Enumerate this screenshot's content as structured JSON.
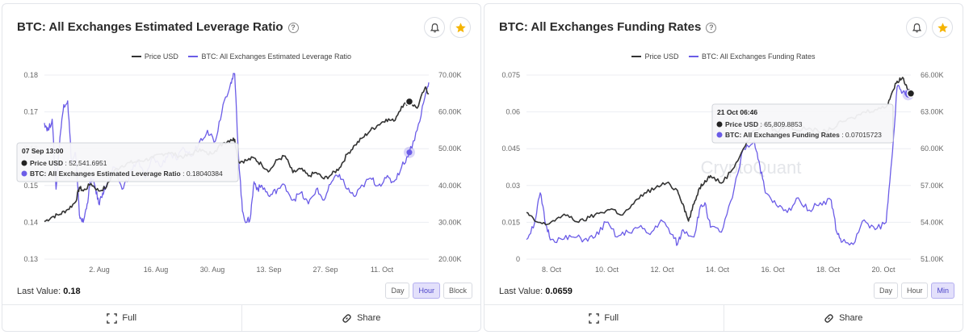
{
  "panels": [
    {
      "title": "BTC: All Exchanges Estimated Leverage Ratio",
      "legend": [
        "Price USD",
        "BTC: All Exchanges Estimated Leverage Ratio"
      ],
      "last_value_label": "Last Value:",
      "last_value": "0.18",
      "range_buttons": [
        "Day",
        "Hour",
        "Block"
      ],
      "active_range": "Hour",
      "footer": {
        "full": "Full",
        "share": "Share"
      },
      "tooltip": {
        "date": "07 Sep 13:00",
        "price_label": "Price USD",
        "price_value": "52,541.6951",
        "metric_label": "BTC: All Exchanges Estimated Leverage Ratio",
        "metric_value": "0.18040384"
      },
      "watermark": ""
    },
    {
      "title": "BTC: All Exchanges Funding Rates",
      "legend": [
        "Price USD",
        "BTC: All Exchanges Funding Rates"
      ],
      "last_value_label": "Last Value:",
      "last_value": "0.0659",
      "range_buttons": [
        "Day",
        "Hour",
        "Min"
      ],
      "active_range": "Min",
      "footer": {
        "full": "Full",
        "share": "Share"
      },
      "tooltip": {
        "date": "21 Oct 06:46",
        "price_label": "Price USD",
        "price_value": "65,809.8853",
        "metric_label": "BTC: All Exchanges Funding Rates",
        "metric_value": "0.07015723"
      },
      "watermark": "CryptoQuant"
    }
  ],
  "colors": {
    "price": "#333333",
    "metric": "#6b5ce7",
    "accent": "#4b43c9",
    "star": "#f5b400"
  },
  "chart_data": [
    {
      "type": "line",
      "title": "BTC: All Exchanges Estimated Leverage Ratio",
      "x_ticks": [
        "2. Aug",
        "16. Aug",
        "30. Aug",
        "13. Sep",
        "27. Sep",
        "11. Oct"
      ],
      "y_left_ticks": [
        "0.13",
        "0.14",
        "0.15",
        "0.16",
        "0.17",
        "0.18"
      ],
      "y_right_ticks": [
        "20.00K",
        "30.00K",
        "40.00K",
        "50.00K",
        "60.00K",
        "70.00K"
      ],
      "ylim_left": [
        0.13,
        0.18
      ],
      "ylim_right": [
        20000,
        70000
      ],
      "x_domain_days": [
        0,
        99
      ],
      "grid": true,
      "legend_position": "top-center",
      "series": [
        {
          "name": "Price USD",
          "axis": "right",
          "points": [
            [
              0,
              30200
            ],
            [
              2,
              31500
            ],
            [
              4,
              32200
            ],
            [
              6,
              33500
            ],
            [
              8,
              35500
            ],
            [
              9,
              39500
            ],
            [
              10,
              38500
            ],
            [
              12,
              40500
            ],
            [
              14,
              38500
            ],
            [
              16,
              39600
            ],
            [
              18,
              44000
            ],
            [
              20,
              45400
            ],
            [
              22,
              46200
            ],
            [
              24,
              46500
            ],
            [
              26,
              47000
            ],
            [
              28,
              47500
            ],
            [
              30,
              48500
            ],
            [
              32,
              49000
            ],
            [
              34,
              48200
            ],
            [
              36,
              47800
            ],
            [
              38,
              48500
            ],
            [
              40,
              50000
            ],
            [
              42,
              48500
            ],
            [
              44,
              49500
            ],
            [
              46,
              51500
            ],
            [
              48,
              52500
            ],
            [
              49,
              52541
            ],
            [
              50,
              46500
            ],
            [
              52,
              46800
            ],
            [
              54,
              47500
            ],
            [
              56,
              45600
            ],
            [
              58,
              44000
            ],
            [
              60,
              47000
            ],
            [
              62,
              48000
            ],
            [
              64,
              43500
            ],
            [
              66,
              44500
            ],
            [
              68,
              42600
            ],
            [
              70,
              43500
            ],
            [
              72,
              41800
            ],
            [
              74,
              43000
            ],
            [
              76,
              44800
            ],
            [
              78,
              48500
            ],
            [
              80,
              51000
            ],
            [
              82,
              53000
            ],
            [
              84,
              55000
            ],
            [
              86,
              56500
            ],
            [
              88,
              58000
            ],
            [
              90,
              57500
            ],
            [
              92,
              61500
            ],
            [
              94,
              62800
            ],
            [
              96,
              61000
            ],
            [
              98,
              66500
            ],
            [
              99,
              65000
            ]
          ]
        },
        {
          "name": "BTC: All Exchanges Estimated Leverage Ratio",
          "axis": "left",
          "points": [
            [
              0,
              0.167
            ],
            [
              1,
              0.165
            ],
            [
              2,
              0.168
            ],
            [
              3,
              0.149
            ],
            [
              4,
              0.163
            ],
            [
              5,
              0.172
            ],
            [
              6,
              0.173
            ],
            [
              7,
              0.156
            ],
            [
              8,
              0.159
            ],
            [
              9,
              0.142
            ],
            [
              10,
              0.14
            ],
            [
              11,
              0.145
            ],
            [
              12,
              0.152
            ],
            [
              13,
              0.15
            ],
            [
              14,
              0.145
            ],
            [
              15,
              0.148
            ],
            [
              16,
              0.15
            ],
            [
              18,
              0.155
            ],
            [
              20,
              0.149
            ],
            [
              22,
              0.153
            ],
            [
              24,
              0.157
            ],
            [
              26,
              0.152
            ],
            [
              28,
              0.158
            ],
            [
              30,
              0.155
            ],
            [
              32,
              0.159
            ],
            [
              34,
              0.157
            ],
            [
              36,
              0.16
            ],
            [
              38,
              0.158
            ],
            [
              40,
              0.162
            ],
            [
              42,
              0.165
            ],
            [
              44,
              0.162
            ],
            [
              46,
              0.172
            ],
            [
              48,
              0.178
            ],
            [
              49,
              0.1804
            ],
            [
              50,
              0.158
            ],
            [
              51,
              0.143
            ],
            [
              52,
              0.14
            ],
            [
              53,
              0.141
            ],
            [
              54,
              0.151
            ],
            [
              55,
              0.149
            ],
            [
              56,
              0.15
            ],
            [
              58,
              0.147
            ],
            [
              60,
              0.149
            ],
            [
              62,
              0.15
            ],
            [
              64,
              0.146
            ],
            [
              66,
              0.148
            ],
            [
              68,
              0.145
            ],
            [
              70,
              0.149
            ],
            [
              72,
              0.146
            ],
            [
              74,
              0.151
            ],
            [
              76,
              0.153
            ],
            [
              78,
              0.149
            ],
            [
              80,
              0.147
            ],
            [
              82,
              0.15
            ],
            [
              84,
              0.152
            ],
            [
              86,
              0.15
            ],
            [
              88,
              0.152
            ],
            [
              90,
              0.151
            ],
            [
              92,
              0.155
            ],
            [
              94,
              0.159
            ],
            [
              96,
              0.165
            ],
            [
              98,
              0.174
            ],
            [
              99,
              0.178
            ]
          ]
        }
      ]
    },
    {
      "type": "line",
      "title": "BTC: All Exchanges Funding Rates",
      "x_ticks": [
        "8. Oct",
        "10. Oct",
        "12. Oct",
        "14. Oct",
        "16. Oct",
        "18. Oct",
        "20. Oct"
      ],
      "y_left_ticks": [
        "0",
        "0.015",
        "0.03",
        "0.045",
        "0.06",
        "0.075"
      ],
      "y_right_ticks": [
        "51.00K",
        "54.00K",
        "57.00K",
        "60.00K",
        "63.00K",
        "66.00K"
      ],
      "ylim_left": [
        0,
        0.075
      ],
      "ylim_right": [
        51000,
        66000
      ],
      "x_domain_days": [
        7.3,
        21.3
      ],
      "grid": true,
      "legend_position": "top-center",
      "series": [
        {
          "name": "Price USD",
          "axis": "right",
          "points": [
            [
              7.3,
              54800
            ],
            [
              7.6,
              54100
            ],
            [
              8.0,
              53800
            ],
            [
              8.4,
              54300
            ],
            [
              8.8,
              54600
            ],
            [
              9.2,
              54000
            ],
            [
              9.6,
              54400
            ],
            [
              10.0,
              54800
            ],
            [
              10.4,
              55100
            ],
            [
              10.8,
              54600
            ],
            [
              11.2,
              55500
            ],
            [
              11.6,
              56400
            ],
            [
              12.0,
              56800
            ],
            [
              12.4,
              57200
            ],
            [
              12.8,
              56600
            ],
            [
              13.0,
              55500
            ],
            [
              13.2,
              54100
            ],
            [
              13.4,
              55500
            ],
            [
              13.6,
              56800
            ],
            [
              13.8,
              57400
            ],
            [
              14.0,
              57800
            ],
            [
              14.4,
              57200
            ],
            [
              14.8,
              58300
            ],
            [
              15.2,
              60000
            ],
            [
              15.6,
              61500
            ],
            [
              16.0,
              62000
            ],
            [
              16.4,
              61400
            ],
            [
              16.8,
              61900
            ],
            [
              17.2,
              61500
            ],
            [
              17.6,
              61700
            ],
            [
              18.0,
              61300
            ],
            [
              18.4,
              61600
            ],
            [
              18.8,
              62200
            ],
            [
              19.2,
              62500
            ],
            [
              19.6,
              63000
            ],
            [
              20.0,
              63200
            ],
            [
              20.4,
              63400
            ],
            [
              20.6,
              64500
            ],
            [
              20.8,
              65500
            ],
            [
              21.0,
              65809
            ],
            [
              21.2,
              64800
            ],
            [
              21.3,
              64500
            ]
          ]
        },
        {
          "name": "BTC: All Exchanges Funding Rates",
          "axis": "left",
          "points": [
            [
              7.3,
              0.008
            ],
            [
              7.6,
              0.015
            ],
            [
              7.8,
              0.027
            ],
            [
              8.0,
              0.014
            ],
            [
              8.2,
              0.008
            ],
            [
              8.6,
              0.008
            ],
            [
              9.0,
              0.009
            ],
            [
              9.4,
              0.008
            ],
            [
              9.8,
              0.009
            ],
            [
              10.2,
              0.015
            ],
            [
              10.6,
              0.009
            ],
            [
              11.0,
              0.011
            ],
            [
              11.4,
              0.013
            ],
            [
              11.8,
              0.01
            ],
            [
              12.2,
              0.016
            ],
            [
              12.6,
              0.01
            ],
            [
              12.8,
              0.006
            ],
            [
              13.0,
              0.012
            ],
            [
              13.4,
              0.009
            ],
            [
              13.6,
              0.02
            ],
            [
              13.8,
              0.023
            ],
            [
              14.0,
              0.013
            ],
            [
              14.4,
              0.011
            ],
            [
              14.8,
              0.025
            ],
            [
              15.2,
              0.045
            ],
            [
              15.6,
              0.048
            ],
            [
              15.8,
              0.038
            ],
            [
              16.0,
              0.027
            ],
            [
              16.4,
              0.022
            ],
            [
              16.8,
              0.019
            ],
            [
              17.2,
              0.025
            ],
            [
              17.6,
              0.02
            ],
            [
              18.0,
              0.023
            ],
            [
              18.4,
              0.024
            ],
            [
              18.6,
              0.011
            ],
            [
              18.8,
              0.007
            ],
            [
              19.2,
              0.006
            ],
            [
              19.6,
              0.016
            ],
            [
              20.0,
              0.012
            ],
            [
              20.4,
              0.015
            ],
            [
              20.6,
              0.04
            ],
            [
              20.8,
              0.0702
            ],
            [
              21.0,
              0.068
            ],
            [
              21.2,
              0.067
            ],
            [
              21.3,
              0.066
            ]
          ]
        }
      ]
    }
  ]
}
